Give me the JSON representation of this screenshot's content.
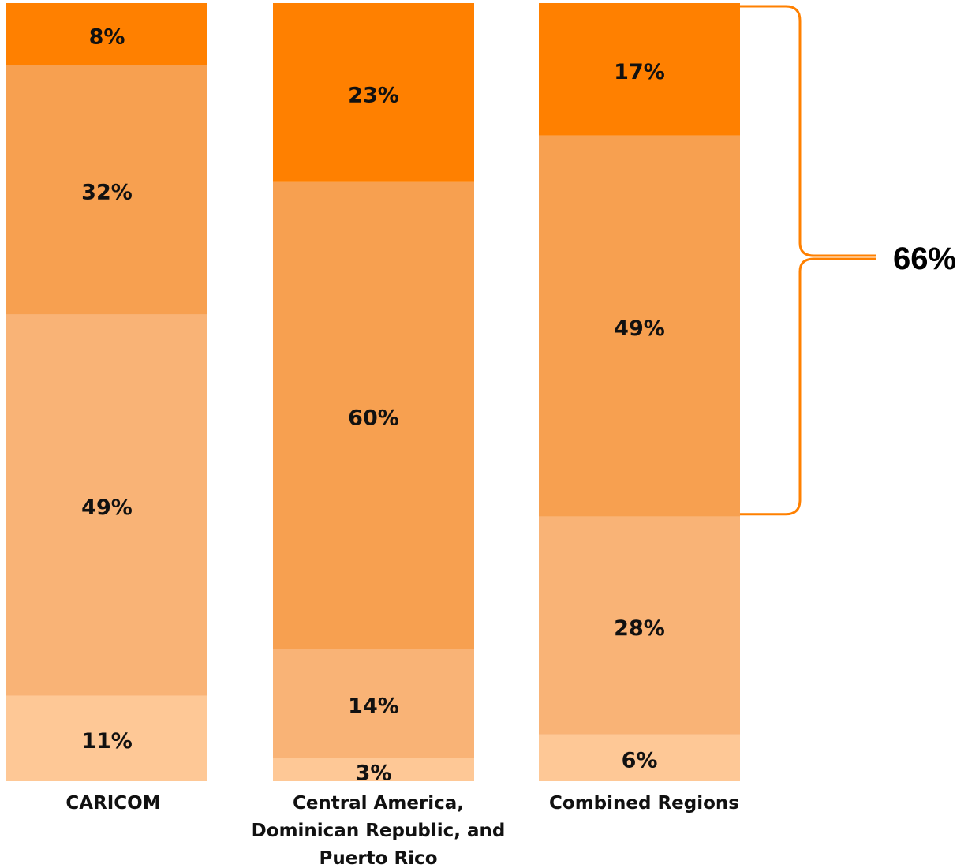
{
  "chart_data": {
    "type": "bar",
    "stacked": true,
    "categories": [
      [
        "CARICOM"
      ],
      [
        "Central America,",
        "Dominican Republic, and",
        "Puerto Rico"
      ],
      [
        "Combined Regions"
      ]
    ],
    "series": [
      {
        "values": [
          11,
          3,
          6
        ],
        "color": "#FEC896"
      },
      {
        "values": [
          49,
          14,
          28
        ],
        "color": "#F9B376"
      },
      {
        "values": [
          32,
          60,
          49
        ],
        "color": "#F7A050"
      },
      {
        "values": [
          8,
          23,
          17
        ],
        "color": "#FF8000"
      }
    ],
    "data_labels": [
      [
        "11%",
        "3%",
        "6%"
      ],
      [
        "49%",
        "14%",
        "28%"
      ],
      [
        "32%",
        "60%",
        "49%"
      ],
      [
        "8%",
        "23%",
        "17%"
      ]
    ],
    "ylim": [
      0,
      100
    ],
    "grid": false,
    "legend": "none",
    "annotation": {
      "text": "66%",
      "category_index": 2,
      "series_from": 2,
      "series_to": 3,
      "color": "#FF8000"
    }
  }
}
